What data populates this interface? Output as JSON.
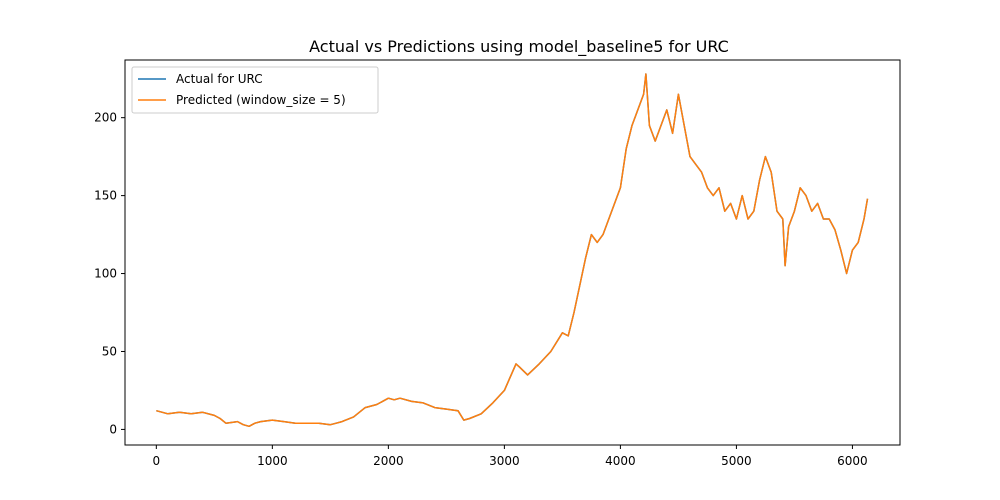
{
  "chart_data": {
    "type": "line",
    "title": "Actual vs Predictions using model_baseline5 for URC",
    "xlabel": "",
    "ylabel": "",
    "xlim": [
      -270,
      6410
    ],
    "ylim": [
      -10,
      237
    ],
    "xticks": [
      0,
      1000,
      2000,
      3000,
      4000,
      5000,
      6000
    ],
    "yticks": [
      0,
      50,
      100,
      150,
      200
    ],
    "grid": false,
    "legend_position": "top-left",
    "series": [
      {
        "name": "Actual for URC",
        "color": "#1f77b4",
        "x": [
          0,
          100,
          200,
          300,
          400,
          500,
          550,
          600,
          700,
          750,
          800,
          850,
          900,
          1000,
          1100,
          1200,
          1300,
          1400,
          1500,
          1550,
          1600,
          1700,
          1800,
          1900,
          2000,
          2050,
          2100,
          2200,
          2300,
          2400,
          2500,
          2600,
          2650,
          2700,
          2800,
          2900,
          3000,
          3100,
          3130,
          3200,
          3300,
          3400,
          3500,
          3550,
          3600,
          3700,
          3750,
          3800,
          3850,
          3900,
          4000,
          4050,
          4100,
          4150,
          4200,
          4220,
          4250,
          4300,
          4350,
          4400,
          4450,
          4500,
          4550,
          4600,
          4650,
          4700,
          4750,
          4800,
          4850,
          4900,
          4950,
          5000,
          5050,
          5100,
          5150,
          5200,
          5250,
          5300,
          5350,
          5400,
          5420,
          5450,
          5500,
          5550,
          5600,
          5650,
          5700,
          5750,
          5800,
          5850,
          5900,
          5950,
          6000,
          6050,
          6100,
          6130
        ],
        "y": [
          12,
          10,
          11,
          10,
          11,
          9,
          7,
          4,
          5,
          3,
          2,
          4,
          5,
          6,
          5,
          4,
          4,
          4,
          3,
          4,
          5,
          8,
          14,
          16,
          20,
          19,
          20,
          18,
          17,
          14,
          13,
          12,
          6,
          7,
          10,
          17,
          25,
          42,
          40,
          35,
          42,
          50,
          62,
          60,
          75,
          110,
          125,
          120,
          125,
          135,
          155,
          180,
          195,
          205,
          215,
          228,
          195,
          185,
          195,
          205,
          190,
          215,
          195,
          175,
          170,
          165,
          155,
          150,
          155,
          140,
          145,
          135,
          150,
          135,
          140,
          160,
          175,
          165,
          140,
          135,
          105,
          130,
          140,
          155,
          150,
          140,
          145,
          135,
          135,
          128,
          115,
          100,
          115,
          120,
          135,
          148
        ]
      },
      {
        "name": "Predicted (window_size = 5)",
        "color": "#ff7f0e",
        "x": [
          0,
          100,
          200,
          300,
          400,
          500,
          550,
          600,
          700,
          750,
          800,
          850,
          900,
          1000,
          1100,
          1200,
          1300,
          1400,
          1500,
          1550,
          1600,
          1700,
          1800,
          1900,
          2000,
          2050,
          2100,
          2200,
          2300,
          2400,
          2500,
          2600,
          2650,
          2700,
          2800,
          2900,
          3000,
          3100,
          3130,
          3200,
          3300,
          3400,
          3500,
          3550,
          3600,
          3700,
          3750,
          3800,
          3850,
          3900,
          4000,
          4050,
          4100,
          4150,
          4200,
          4220,
          4250,
          4300,
          4350,
          4400,
          4450,
          4500,
          4550,
          4600,
          4650,
          4700,
          4750,
          4800,
          4850,
          4900,
          4950,
          5000,
          5050,
          5100,
          5150,
          5200,
          5250,
          5300,
          5350,
          5400,
          5420,
          5450,
          5500,
          5550,
          5600,
          5650,
          5700,
          5750,
          5800,
          5850,
          5900,
          5950,
          6000,
          6050,
          6100,
          6130
        ],
        "y": [
          12,
          10,
          11,
          10,
          11,
          9,
          7,
          4,
          5,
          3,
          2,
          4,
          5,
          6,
          5,
          4,
          4,
          4,
          3,
          4,
          5,
          8,
          14,
          16,
          20,
          19,
          20,
          18,
          17,
          14,
          13,
          12,
          6,
          7,
          10,
          17,
          25,
          42,
          40,
          35,
          42,
          50,
          62,
          60,
          75,
          110,
          125,
          120,
          125,
          135,
          155,
          180,
          195,
          205,
          215,
          228,
          195,
          185,
          195,
          205,
          190,
          215,
          195,
          175,
          170,
          165,
          155,
          150,
          155,
          140,
          145,
          135,
          150,
          135,
          140,
          160,
          175,
          165,
          140,
          135,
          105,
          130,
          140,
          155,
          150,
          140,
          145,
          135,
          135,
          128,
          115,
          100,
          115,
          120,
          135,
          148
        ]
      }
    ]
  }
}
